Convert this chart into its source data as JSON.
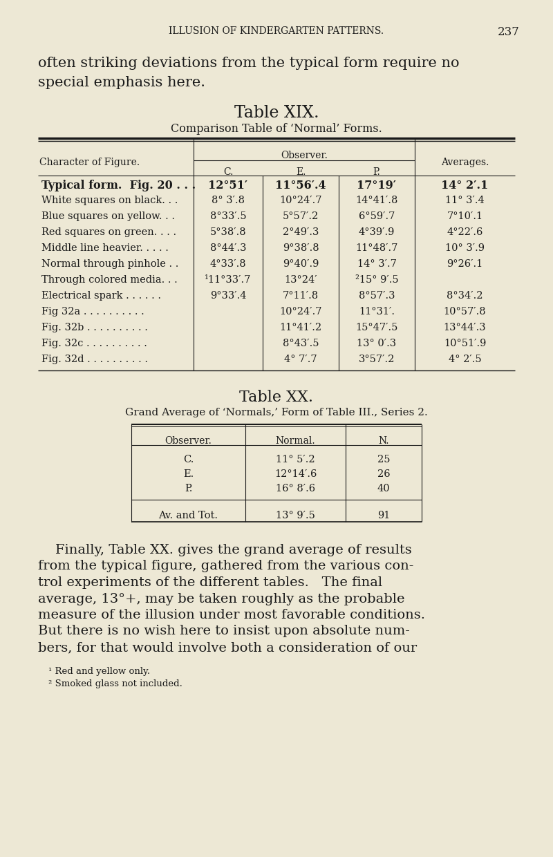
{
  "bg_color": "#ede8d5",
  "text_color": "#1a1a1a",
  "page_header": "ILLUSION OF KINDERGARTEN PATTERNS.",
  "page_number": "237",
  "intro_line1": "often striking deviations from the typical form require no",
  "intro_line2": "special emphasis here.",
  "table19_title": "Table XIX.",
  "table19_subtitle": "Comparison Table of ‘Normal’ Forms.",
  "table19_rows": [
    [
      "Typical form.  Fig. 20 . . .",
      "12°51′",
      "11°56′.4",
      "17°19′",
      "14° 2′.1",
      true
    ],
    [
      "White squares on black. . .",
      "8° 3′.8",
      "10°24′.7",
      "14°41′.8",
      "11° 3′.4",
      false
    ],
    [
      "Blue squares on yellow. . .",
      "8°33′.5",
      "5°57′.2",
      "6°59′.7",
      "7°10′.1",
      false
    ],
    [
      "Red squares on green. . . .",
      "5°38′.8",
      "2°49′.3",
      "4°39′.9",
      "4°22′.6",
      false
    ],
    [
      "Middle line heavier. . . . .",
      "8°44′.3",
      "9°38′.8",
      "11°48′.7",
      "10° 3′.9",
      false
    ],
    [
      "Normal through pinhole . .",
      "4°33′.8",
      "9°40′.9",
      "14° 3′.7",
      "9°26′.1",
      false
    ],
    [
      "Through colored media. . .",
      "¹11°33′.7",
      "13°24′",
      "²15° 9′.5",
      "",
      false
    ],
    [
      "Electrical spark . . . . . .",
      "9°33′.4",
      "7°11′.8",
      "8°57′.3",
      "8°34′.2",
      false
    ],
    [
      "Fig 32a . . . . . . . . . .",
      "",
      "10°24′.7",
      "11°31′.",
      "10°57′.8",
      false
    ],
    [
      "Fig. 32b . . . . . . . . . .",
      "",
      "11°41′.2",
      "15°47′.5",
      "13°44′.3",
      false
    ],
    [
      "Fig. 32c . . . . . . . . . .",
      "",
      "8°43′.5",
      "13° 0′.3",
      "10°51′.9",
      false
    ],
    [
      "Fig. 32d . . . . . . . . . .",
      "",
      "4° 7′.7",
      "3°57′.2",
      "4° 2′.5",
      false
    ]
  ],
  "table20_title": "Table XX.",
  "table20_subtitle": "Grand Average of ‘Normals,’ Form of Table III., Series 2.",
  "table20_rows": [
    [
      "C.",
      "11° 5′.2",
      "25"
    ],
    [
      "E.",
      "12°14′.6",
      "26"
    ],
    [
      "P.",
      "16° 8′.6",
      "40"
    ]
  ],
  "table20_footer": [
    "Av. and Tot.",
    "13° 9′.5",
    "91"
  ],
  "body_lines": [
    "    Finally, Table XX. gives the grand average of results",
    "from the typical figure, gathered from the various con-",
    "trol experiments of the different tables.   The final",
    "average, 13°+, may be taken roughly as the probable",
    "measure of the illusion under most favorable conditions.",
    "But there is no wish here to insist upon absolute num-",
    "bers, for that would involve both a consideration of our"
  ],
  "footnotes": [
    "¹ Red and yellow only.",
    "² Smoked glass not included."
  ]
}
